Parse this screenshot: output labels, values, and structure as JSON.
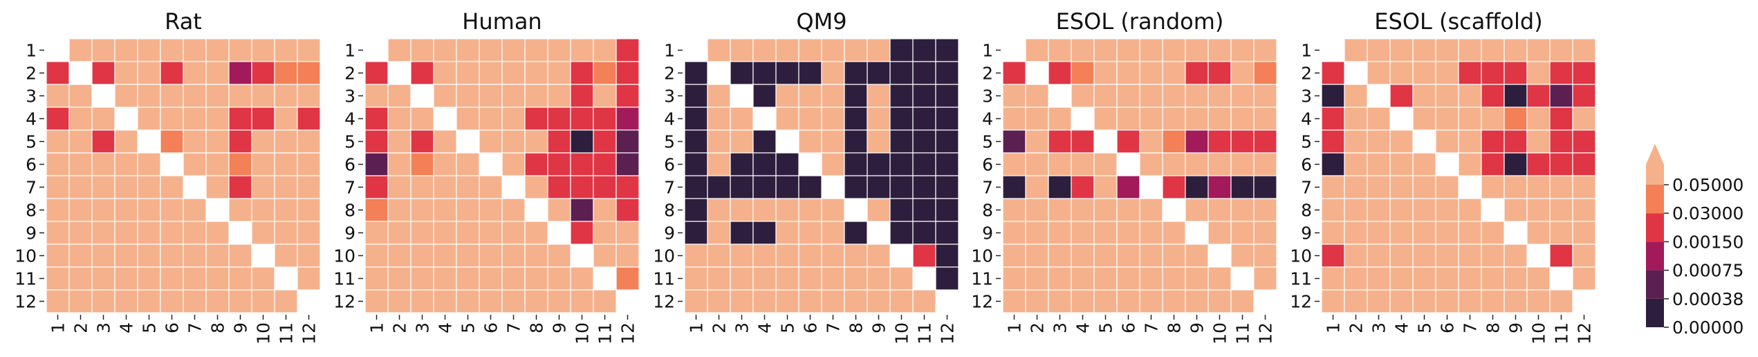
{
  "colors": {
    "palette": [
      "#2d1e3e",
      "#5c1f52",
      "#a31a5a",
      "#e03545",
      "#f38056",
      "#f5b18c"
    ],
    "missing": "#ffffff",
    "grid": "#ffffff"
  },
  "colorbar": {
    "tick_labels": [
      "0.00000",
      "0.00038",
      "0.00075",
      "0.00150",
      "0.03000",
      "0.05000"
    ],
    "boundaries": [
      0.0,
      0.000375,
      0.00075,
      0.0015,
      0.015,
      0.03,
      0.05
    ],
    "extend": "max"
  },
  "chart_data": [
    {
      "type": "heatmap",
      "title": "Rat",
      "x_tick_labels": [
        "1",
        "2",
        "3",
        "4",
        "5",
        "6",
        "7",
        "8",
        "9",
        "10",
        "11",
        "12"
      ],
      "y_tick_labels": [
        "1",
        "2",
        "3",
        "4",
        "5",
        "6",
        "7",
        "8",
        "9",
        "10",
        "11",
        "12"
      ],
      "levels": [
        [
          null,
          5,
          5,
          5,
          5,
          5,
          5,
          5,
          5,
          5,
          5,
          5
        ],
        [
          3,
          null,
          3,
          5,
          5,
          3,
          5,
          5,
          2,
          3,
          4,
          4
        ],
        [
          5,
          5,
          null,
          5,
          5,
          5,
          5,
          5,
          5,
          5,
          5,
          5
        ],
        [
          3,
          5,
          5,
          null,
          5,
          5,
          5,
          5,
          3,
          3,
          5,
          3
        ],
        [
          5,
          5,
          3,
          5,
          null,
          4,
          5,
          5,
          3,
          5,
          5,
          5
        ],
        [
          5,
          5,
          5,
          5,
          5,
          null,
          5,
          5,
          4,
          5,
          5,
          5
        ],
        [
          5,
          5,
          5,
          5,
          5,
          5,
          null,
          5,
          3,
          5,
          5,
          5
        ],
        [
          5,
          5,
          5,
          5,
          5,
          5,
          5,
          null,
          5,
          5,
          5,
          5
        ],
        [
          5,
          5,
          5,
          5,
          5,
          5,
          5,
          5,
          null,
          5,
          5,
          5
        ],
        [
          5,
          5,
          5,
          5,
          5,
          5,
          5,
          5,
          5,
          null,
          5,
          5
        ],
        [
          5,
          5,
          5,
          5,
          5,
          5,
          5,
          5,
          5,
          5,
          null,
          5
        ],
        [
          5,
          5,
          5,
          5,
          5,
          5,
          5,
          5,
          5,
          5,
          5,
          null
        ]
      ]
    },
    {
      "type": "heatmap",
      "title": "Human",
      "x_tick_labels": [
        "1",
        "2",
        "3",
        "4",
        "5",
        "6",
        "7",
        "8",
        "9",
        "10",
        "11",
        "12"
      ],
      "y_tick_labels": [
        "1",
        "2",
        "3",
        "4",
        "5",
        "6",
        "7",
        "8",
        "9",
        "10",
        "11",
        "12"
      ],
      "levels": [
        [
          null,
          5,
          5,
          5,
          5,
          5,
          5,
          5,
          5,
          5,
          5,
          3
        ],
        [
          3,
          null,
          3,
          5,
          5,
          5,
          5,
          5,
          5,
          3,
          4,
          3
        ],
        [
          5,
          5,
          null,
          5,
          5,
          5,
          5,
          5,
          5,
          3,
          5,
          3
        ],
        [
          3,
          5,
          5,
          null,
          5,
          5,
          5,
          3,
          3,
          3,
          3,
          2
        ],
        [
          3,
          5,
          3,
          5,
          null,
          5,
          5,
          5,
          3,
          0,
          3,
          1
        ],
        [
          1,
          5,
          4,
          5,
          5,
          null,
          5,
          3,
          3,
          3,
          3,
          1
        ],
        [
          3,
          5,
          5,
          5,
          5,
          5,
          null,
          5,
          3,
          3,
          3,
          3
        ],
        [
          4,
          5,
          5,
          5,
          5,
          5,
          5,
          null,
          5,
          1,
          5,
          3
        ],
        [
          5,
          5,
          5,
          5,
          5,
          5,
          5,
          5,
          null,
          3,
          5,
          5
        ],
        [
          5,
          5,
          5,
          5,
          5,
          5,
          5,
          5,
          5,
          null,
          5,
          5
        ],
        [
          5,
          5,
          5,
          5,
          5,
          5,
          5,
          5,
          5,
          5,
          null,
          4
        ],
        [
          5,
          5,
          5,
          5,
          5,
          5,
          5,
          5,
          5,
          5,
          5,
          null
        ]
      ]
    },
    {
      "type": "heatmap",
      "title": "QM9",
      "x_tick_labels": [
        "1",
        "2",
        "3",
        "4",
        "5",
        "6",
        "7",
        "8",
        "9",
        "10",
        "11",
        "12"
      ],
      "y_tick_labels": [
        "1",
        "2",
        "3",
        "4",
        "5",
        "6",
        "7",
        "8",
        "9",
        "10",
        "11",
        "12"
      ],
      "levels": [
        [
          null,
          5,
          5,
          5,
          5,
          5,
          5,
          5,
          5,
          0,
          0,
          0
        ],
        [
          0,
          null,
          0,
          0,
          0,
          0,
          5,
          0,
          0,
          0,
          0,
          0
        ],
        [
          0,
          5,
          null,
          0,
          5,
          5,
          5,
          0,
          5,
          0,
          0,
          0
        ],
        [
          0,
          5,
          5,
          null,
          5,
          5,
          5,
          0,
          5,
          0,
          0,
          0
        ],
        [
          0,
          5,
          5,
          0,
          null,
          5,
          5,
          0,
          5,
          0,
          0,
          0
        ],
        [
          0,
          5,
          0,
          0,
          0,
          null,
          5,
          0,
          0,
          0,
          0,
          0
        ],
        [
          0,
          0,
          0,
          0,
          0,
          0,
          null,
          0,
          0,
          0,
          0,
          0
        ],
        [
          0,
          5,
          5,
          5,
          5,
          5,
          5,
          null,
          5,
          0,
          0,
          0
        ],
        [
          0,
          5,
          0,
          0,
          5,
          5,
          5,
          0,
          null,
          0,
          0,
          0
        ],
        [
          5,
          5,
          5,
          5,
          5,
          5,
          5,
          5,
          5,
          null,
          3,
          0
        ],
        [
          5,
          5,
          5,
          5,
          5,
          5,
          5,
          5,
          5,
          5,
          null,
          0
        ],
        [
          5,
          5,
          5,
          5,
          5,
          5,
          5,
          5,
          5,
          5,
          5,
          null
        ]
      ]
    },
    {
      "type": "heatmap",
      "title": "ESOL (random)",
      "x_tick_labels": [
        "1",
        "2",
        "3",
        "4",
        "5",
        "6",
        "7",
        "8",
        "9",
        "10",
        "11",
        "12"
      ],
      "y_tick_labels": [
        "1",
        "2",
        "3",
        "4",
        "5",
        "6",
        "7",
        "8",
        "9",
        "10",
        "11",
        "12"
      ],
      "levels": [
        [
          null,
          5,
          5,
          5,
          5,
          5,
          5,
          5,
          5,
          5,
          5,
          5
        ],
        [
          3,
          null,
          3,
          4,
          5,
          5,
          5,
          5,
          3,
          3,
          5,
          4
        ],
        [
          5,
          5,
          null,
          5,
          5,
          5,
          5,
          5,
          5,
          5,
          5,
          5
        ],
        [
          5,
          5,
          5,
          null,
          5,
          5,
          5,
          5,
          5,
          5,
          5,
          5
        ],
        [
          1,
          5,
          3,
          3,
          null,
          3,
          5,
          4,
          2,
          3,
          3,
          3
        ],
        [
          5,
          5,
          5,
          5,
          5,
          null,
          5,
          5,
          5,
          5,
          5,
          5
        ],
        [
          0,
          5,
          0,
          3,
          5,
          2,
          null,
          3,
          0,
          2,
          0,
          0
        ],
        [
          5,
          5,
          5,
          5,
          5,
          5,
          5,
          null,
          5,
          5,
          5,
          5
        ],
        [
          5,
          5,
          5,
          5,
          5,
          5,
          5,
          5,
          null,
          5,
          5,
          5
        ],
        [
          5,
          5,
          5,
          5,
          5,
          5,
          5,
          5,
          5,
          null,
          5,
          5
        ],
        [
          5,
          5,
          5,
          5,
          5,
          5,
          5,
          5,
          5,
          5,
          null,
          5
        ],
        [
          5,
          5,
          5,
          5,
          5,
          5,
          5,
          5,
          5,
          5,
          5,
          null
        ]
      ]
    },
    {
      "type": "heatmap",
      "title": "ESOL (scaffold)",
      "x_tick_labels": [
        "1",
        "2",
        "3",
        "4",
        "5",
        "6",
        "7",
        "8",
        "9",
        "10",
        "11",
        "12"
      ],
      "y_tick_labels": [
        "1",
        "2",
        "3",
        "4",
        "5",
        "6",
        "7",
        "8",
        "9",
        "10",
        "11",
        "12"
      ],
      "levels": [
        [
          null,
          5,
          5,
          5,
          5,
          5,
          5,
          5,
          5,
          5,
          5,
          5
        ],
        [
          3,
          null,
          5,
          5,
          5,
          5,
          3,
          3,
          3,
          5,
          3,
          3
        ],
        [
          0,
          5,
          null,
          3,
          5,
          5,
          5,
          3,
          0,
          3,
          1,
          3
        ],
        [
          3,
          5,
          5,
          null,
          5,
          5,
          5,
          5,
          4,
          5,
          3,
          5
        ],
        [
          3,
          5,
          5,
          5,
          null,
          5,
          5,
          3,
          3,
          5,
          3,
          3
        ],
        [
          0,
          5,
          5,
          5,
          5,
          null,
          5,
          3,
          0,
          3,
          3,
          3
        ],
        [
          5,
          5,
          5,
          5,
          5,
          5,
          null,
          5,
          5,
          5,
          5,
          5
        ],
        [
          5,
          5,
          5,
          5,
          5,
          5,
          5,
          null,
          5,
          5,
          5,
          5
        ],
        [
          5,
          5,
          5,
          5,
          5,
          5,
          5,
          5,
          null,
          5,
          5,
          5
        ],
        [
          3,
          5,
          5,
          5,
          5,
          5,
          5,
          5,
          5,
          null,
          3,
          5
        ],
        [
          5,
          5,
          5,
          5,
          5,
          5,
          5,
          5,
          5,
          5,
          null,
          5
        ],
        [
          5,
          5,
          5,
          5,
          5,
          5,
          5,
          5,
          5,
          5,
          5,
          null
        ]
      ]
    }
  ]
}
